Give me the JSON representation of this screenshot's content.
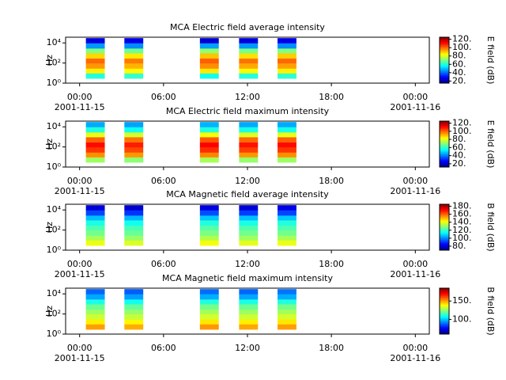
{
  "chart_data": [
    {
      "type": "spectrogram",
      "title": "MCA  Electric field average intensity",
      "ylabel": "Hz",
      "colorbar_label": "E field (dB)",
      "log_y": true,
      "colormap": "jet",
      "xlim": [
        -1,
        25
      ],
      "xticks": [
        {
          "value": 0,
          "label": "00:00"
        },
        {
          "value": 6,
          "label": "06:00"
        },
        {
          "value": 12,
          "label": "12:00"
        },
        {
          "value": 18,
          "label": "18:00"
        },
        {
          "value": 24,
          "label": "00:00"
        }
      ],
      "xtick_dates": [
        {
          "value": 0,
          "label": "2001-11-15"
        },
        {
          "value": 24,
          "label": "2001-11-16"
        }
      ],
      "ylim": [
        1,
        37000
      ],
      "yticks": [
        {
          "value": 1,
          "label": "10⁰"
        },
        {
          "value": 100,
          "label": "10²"
        },
        {
          "value": 10000,
          "label": "10⁴"
        }
      ],
      "clim": [
        15,
        125
      ],
      "cticks": [
        {
          "value": 20,
          "label": "20."
        },
        {
          "value": 40,
          "label": "40."
        },
        {
          "value": 60,
          "label": "60."
        },
        {
          "value": 80,
          "label": "80."
        },
        {
          "value": 100,
          "label": "100."
        },
        {
          "value": 120,
          "label": "120."
        }
      ],
      "segments": [
        [
          0.45,
          1.8
        ],
        [
          3.2,
          4.55
        ],
        [
          8.6,
          9.95
        ],
        [
          11.4,
          12.75
        ],
        [
          14.15,
          15.5
        ]
      ],
      "freq_bins": [
        3,
        10,
        30,
        100,
        300,
        1000,
        3000,
        10000,
        30000
      ],
      "values": [
        [
          60,
          85,
          95,
          100,
          88,
          70,
          45,
          25
        ],
        [
          62,
          84,
          92,
          98,
          86,
          68,
          44,
          26
        ],
        [
          58,
          86,
          96,
          101,
          90,
          72,
          46,
          24
        ],
        [
          60,
          83,
          93,
          99,
          87,
          69,
          45,
          25
        ],
        [
          61,
          85,
          94,
          100,
          89,
          70,
          44,
          26
        ]
      ]
    },
    {
      "type": "spectrogram",
      "title": "MCA  Electric field maximum intensity",
      "ylabel": "Hz",
      "colorbar_label": "E field (dB)",
      "log_y": true,
      "colormap": "jet",
      "xlim": [
        -1,
        25
      ],
      "xticks": [
        {
          "value": 0,
          "label": "00:00"
        },
        {
          "value": 6,
          "label": "06:00"
        },
        {
          "value": 12,
          "label": "12:00"
        },
        {
          "value": 18,
          "label": "18:00"
        },
        {
          "value": 24,
          "label": "00:00"
        }
      ],
      "xtick_dates": [
        {
          "value": 0,
          "label": "2001-11-15"
        },
        {
          "value": 24,
          "label": "2001-11-16"
        }
      ],
      "ylim": [
        1,
        37000
      ],
      "yticks": [
        {
          "value": 1,
          "label": "10⁰"
        },
        {
          "value": 100,
          "label": "10²"
        },
        {
          "value": 10000,
          "label": "10⁴"
        }
      ],
      "clim": [
        12,
        125
      ],
      "cticks": [
        {
          "value": 20,
          "label": "20."
        },
        {
          "value": 40,
          "label": "40."
        },
        {
          "value": 60,
          "label": "60."
        },
        {
          "value": 80,
          "label": "80."
        },
        {
          "value": 100,
          "label": "100."
        },
        {
          "value": 120,
          "label": "120."
        }
      ],
      "segments": [
        [
          0.45,
          1.8
        ],
        [
          3.2,
          4.55
        ],
        [
          8.6,
          9.95
        ],
        [
          11.4,
          12.75
        ],
        [
          14.15,
          15.5
        ]
      ],
      "freq_bins": [
        3,
        10,
        30,
        100,
        300,
        1000,
        3000,
        10000,
        30000
      ],
      "values": [
        [
          72,
          95,
          105,
          110,
          100,
          80,
          58,
          45
        ],
        [
          70,
          94,
          103,
          108,
          98,
          78,
          56,
          44
        ],
        [
          73,
          96,
          106,
          111,
          101,
          82,
          58,
          46
        ],
        [
          71,
          94,
          104,
          109,
          99,
          79,
          57,
          45
        ],
        [
          72,
          95,
          105,
          110,
          100,
          80,
          57,
          45
        ]
      ]
    },
    {
      "type": "spectrogram",
      "title": "MCA  Magnetic field average intensity",
      "ylabel": "Hz",
      "colorbar_label": "B field (dB)",
      "log_y": true,
      "colormap": "jet",
      "xlim": [
        -1,
        25
      ],
      "xticks": [
        {
          "value": 0,
          "label": "00:00"
        },
        {
          "value": 6,
          "label": "06:00"
        },
        {
          "value": 12,
          "label": "12:00"
        },
        {
          "value": 18,
          "label": "18:00"
        },
        {
          "value": 24,
          "label": "00:00"
        }
      ],
      "xtick_dates": [
        {
          "value": 0,
          "label": "2001-11-15"
        },
        {
          "value": 24,
          "label": "2001-11-16"
        }
      ],
      "ylim": [
        1,
        37000
      ],
      "yticks": [
        {
          "value": 1,
          "label": "10⁰"
        },
        {
          "value": 100,
          "label": "10²"
        },
        {
          "value": 10000,
          "label": "10⁴"
        }
      ],
      "clim": [
        70,
        185
      ],
      "cticks": [
        {
          "value": 80,
          "label": "80."
        },
        {
          "value": 100,
          "label": "100."
        },
        {
          "value": 120,
          "label": "120."
        },
        {
          "value": 140,
          "label": "140."
        },
        {
          "value": 160,
          "label": "160."
        },
        {
          "value": 180,
          "label": "180."
        }
      ],
      "segments": [
        [
          0.45,
          1.8
        ],
        [
          3.2,
          4.55
        ],
        [
          8.6,
          9.95
        ],
        [
          11.4,
          12.75
        ],
        [
          14.15,
          15.5
        ]
      ],
      "freq_bins": [
        3,
        10,
        30,
        100,
        300,
        1000,
        3000,
        10000,
        30000
      ],
      "values": [
        [
          140,
          132,
          126,
          122,
          116,
          106,
          92,
          80
        ],
        [
          138,
          130,
          125,
          121,
          115,
          105,
          90,
          79
        ],
        [
          141,
          133,
          127,
          123,
          117,
          107,
          93,
          81
        ],
        [
          139,
          131,
          126,
          122,
          116,
          106,
          91,
          80
        ],
        [
          140,
          132,
          126,
          122,
          117,
          107,
          92,
          82
        ]
      ]
    },
    {
      "type": "spectrogram",
      "title": "MCA  Magnetic field maximum intensity",
      "ylabel": "Hz",
      "colorbar_label": "B field (dB)",
      "log_y": true,
      "colormap": "jet",
      "xlim": [
        -1,
        25
      ],
      "xticks": [
        {
          "value": 0,
          "label": "00:00"
        },
        {
          "value": 6,
          "label": "06:00"
        },
        {
          "value": 12,
          "label": "12:00"
        },
        {
          "value": 18,
          "label": "18:00"
        },
        {
          "value": 24,
          "label": "00:00"
        }
      ],
      "xtick_dates": [
        {
          "value": 0,
          "label": "2001-11-15"
        },
        {
          "value": 24,
          "label": "2001-11-16"
        }
      ],
      "ylim": [
        1,
        37000
      ],
      "yticks": [
        {
          "value": 1,
          "label": "10⁰"
        },
        {
          "value": 100,
          "label": "10²"
        },
        {
          "value": 10000,
          "label": "10⁴"
        }
      ],
      "clim": [
        60,
        185
      ],
      "cticks": [
        {
          "value": 100,
          "label": "100."
        },
        {
          "value": 150,
          "label": "150."
        }
      ],
      "segments": [
        [
          0.45,
          1.8
        ],
        [
          3.2,
          4.55
        ],
        [
          8.6,
          9.95
        ],
        [
          11.4,
          12.75
        ],
        [
          14.15,
          15.5
        ]
      ],
      "freq_bins": [
        3,
        10,
        30,
        100,
        300,
        1000,
        3000,
        10000,
        30000
      ],
      "values": [
        [
          150,
          140,
          132,
          126,
          120,
          110,
          96,
          88
        ],
        [
          148,
          139,
          131,
          125,
          119,
          109,
          95,
          87
        ],
        [
          151,
          141,
          133,
          127,
          121,
          111,
          97,
          89
        ],
        [
          149,
          140,
          132,
          126,
          120,
          110,
          96,
          88
        ],
        [
          150,
          141,
          133,
          127,
          121,
          111,
          97,
          90
        ]
      ]
    }
  ]
}
